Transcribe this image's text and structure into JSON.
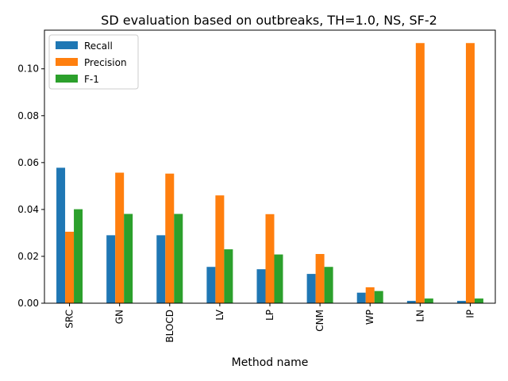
{
  "chart_data": {
    "type": "bar",
    "title": "SD evaluation based on outbreaks, TH=1.0, NS, SF-2",
    "xlabel": "Method name",
    "ylabel": "",
    "categories": [
      "SRC",
      "GN",
      "BLOCD",
      "LV",
      "LP",
      "CNM",
      "WP",
      "LN",
      "IP"
    ],
    "ylim": [
      0,
      0.1165
    ],
    "yticks": [
      0.0,
      0.02,
      0.04,
      0.06,
      0.08,
      0.1
    ],
    "ytick_labels": [
      "0.00",
      "0.02",
      "0.04",
      "0.06",
      "0.08",
      "0.10"
    ],
    "grid": false,
    "legend_position": "upper-left",
    "series": [
      {
        "name": "Recall",
        "color": "#1f77b4",
        "values": [
          0.0578,
          0.029,
          0.029,
          0.0155,
          0.0145,
          0.0125,
          0.0045,
          0.001,
          0.001
        ]
      },
      {
        "name": "Precision",
        "color": "#ff7f0e",
        "values": [
          0.0305,
          0.0557,
          0.0553,
          0.046,
          0.038,
          0.021,
          0.0068,
          0.111,
          0.111
        ]
      },
      {
        "name": "F-1",
        "color": "#2ca02c",
        "values": [
          0.0401,
          0.0381,
          0.0381,
          0.023,
          0.0208,
          0.0155,
          0.0052,
          0.002,
          0.002
        ]
      }
    ]
  }
}
